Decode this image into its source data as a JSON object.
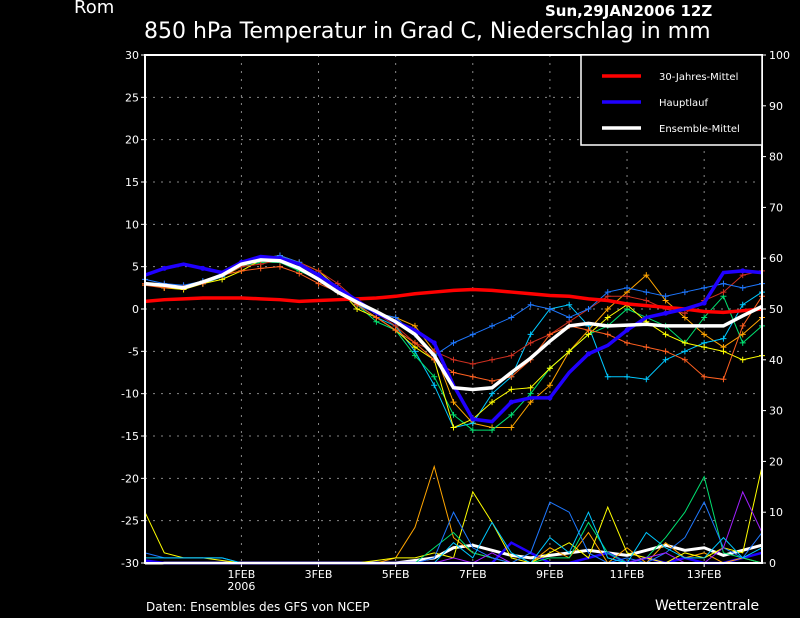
{
  "header": {
    "location": "Rom",
    "run": "Sun,29JAN2006 12Z",
    "title": "850 hPa Temperatur in Grad C, Niederschlag in mm"
  },
  "footer": {
    "source": "Daten: Ensembles des GFS von NCEP",
    "brand": "Wetterzentrale"
  },
  "chart_data": {
    "type": "line",
    "title": "850 hPa Temperatur in Grad C, Niederschlag in mm",
    "x_unit": "days since 29JAN2006 12Z, 12h steps",
    "x": [
      0,
      0.5,
      1,
      1.5,
      2,
      2.5,
      3,
      3.5,
      4,
      4.5,
      5,
      5.5,
      6,
      6.5,
      7,
      7.5,
      8,
      8.5,
      9,
      9.5,
      10,
      10.5,
      11,
      11.5,
      12,
      12.5,
      13,
      13.5,
      14,
      14.5,
      15,
      15.5,
      16
    ],
    "x_ticks": [
      {
        "day": 2.5,
        "label": "1FEB",
        "sub": "2006"
      },
      {
        "day": 4.5,
        "label": "3FEB"
      },
      {
        "day": 6.5,
        "label": "5FEB"
      },
      {
        "day": 8.5,
        "label": "7FEB"
      },
      {
        "day": 10.5,
        "label": "9FEB"
      },
      {
        "day": 12.5,
        "label": "11FEB"
      },
      {
        "day": 14.5,
        "label": "13FEB"
      }
    ],
    "ylim_left": [
      -30,
      30
    ],
    "yticks_left": [
      "-30",
      "-25",
      "-20",
      "-15",
      "-10",
      "-5",
      "0",
      "5",
      "10",
      "15",
      "20",
      "25",
      "30"
    ],
    "ylim_right": [
      0,
      100
    ],
    "yticks_right": [
      "0",
      "10",
      "20",
      "30",
      "40",
      "50",
      "60",
      "70",
      "80",
      "90",
      "100"
    ],
    "grid": true,
    "legend_position": "top-right",
    "legend": [
      {
        "name": "30-Jahres-Mittel",
        "color": "#ff0000"
      },
      {
        "name": "Hauptlauf",
        "color": "#2000ff"
      },
      {
        "name": "Ensemble-Mittel",
        "color": "#ffffff"
      }
    ],
    "series": [
      {
        "name": "30-Jahres-Mittel",
        "color": "#ff0000",
        "width": 3.5,
        "values": [
          0.9,
          1.1,
          1.2,
          1.3,
          1.3,
          1.3,
          1.2,
          1.1,
          0.9,
          1.0,
          1.1,
          1.2,
          1.3,
          1.5,
          1.8,
          2.0,
          2.2,
          2.3,
          2.2,
          2.0,
          1.8,
          1.6,
          1.5,
          1.2,
          1.0,
          0.6,
          0.4,
          0.2,
          0,
          -0.3,
          -0.4,
          -0.2,
          0
        ]
      },
      {
        "name": "Hauptlauf",
        "color": "#2000ff",
        "width": 3.5,
        "values": [
          4,
          4.8,
          5.3,
          4.8,
          4.3,
          5.5,
          6.2,
          6,
          5.3,
          4,
          2.5,
          1,
          -0.5,
          -1.5,
          -2.5,
          -4,
          -9,
          -13,
          -13.3,
          -11,
          -10.5,
          -10.5,
          -7.5,
          -5.3,
          -4.3,
          -2.5,
          -1,
          -0.5,
          0,
          0.7,
          4.3,
          4.5,
          4.3
        ]
      },
      {
        "name": "Ensemble-Mittel",
        "color": "#ffffff",
        "width": 3.5,
        "values": [
          3,
          2.8,
          2.5,
          3.2,
          4,
          5.3,
          5.8,
          5.7,
          4.8,
          3.5,
          2,
          0.8,
          -0.3,
          -1.5,
          -3,
          -5.5,
          -9.3,
          -9.5,
          -9.3,
          -7.5,
          -5.8,
          -3.8,
          -2,
          -1.7,
          -2,
          -1.9,
          -1.8,
          -2,
          -2,
          -2,
          -2,
          -0.8,
          0.3
        ]
      }
    ],
    "members": [
      {
        "color": "#ffa500",
        "values": [
          3,
          2.8,
          2.5,
          3,
          3.8,
          5,
          6,
          6.3,
          5.3,
          4,
          2.5,
          1,
          -0.5,
          -1,
          -2,
          -5,
          -11,
          -13.5,
          -14,
          -14,
          -11,
          -9,
          -5,
          -2.5,
          0,
          2,
          4,
          1,
          -1,
          -3,
          -4.5,
          -3,
          -1
        ]
      },
      {
        "color": "#00c8ff",
        "values": [
          3,
          2.7,
          2.5,
          3,
          3.8,
          5.2,
          5.8,
          5.7,
          5,
          3.5,
          2,
          0.5,
          -1,
          -2,
          -5,
          -9,
          -14,
          -13.5,
          -10,
          -8,
          -3,
          0,
          0.5,
          -2,
          -8,
          -8,
          -8.3,
          -6,
          -5,
          -4,
          -3.5,
          0.5,
          2
        ]
      },
      {
        "color": "#00e070",
        "values": [
          3,
          2.5,
          2.5,
          3.2,
          4,
          5,
          5.5,
          5.5,
          4.5,
          3.5,
          2,
          0.5,
          -1.5,
          -2.5,
          -5.5,
          -8,
          -12.5,
          -14.3,
          -14.3,
          -12.5,
          -10,
          -7,
          -5,
          -3,
          -2,
          0,
          -1,
          -2,
          -4,
          -1,
          1.5,
          -4,
          -2
        ]
      },
      {
        "color": "#ffff00",
        "values": [
          3,
          2.5,
          2.3,
          3,
          3.5,
          4.5,
          5.8,
          6.3,
          5.5,
          4.5,
          2.5,
          0,
          -1,
          -2.5,
          -4.5,
          -6,
          -14,
          -13,
          -11,
          -9.5,
          -9.3,
          -7,
          -5,
          -3,
          -1,
          0.5,
          -1.5,
          -3,
          -4,
          -4.5,
          -5,
          -6,
          -5.5
        ]
      },
      {
        "color": "#d03020",
        "values": [
          3,
          2.8,
          2.7,
          3.2,
          4,
          5,
          5.3,
          5.8,
          5.5,
          4.5,
          3,
          1,
          -0.5,
          -2,
          -4,
          -5,
          -6,
          -6.5,
          -6,
          -5.5,
          -4,
          -3,
          -1.5,
          0,
          1.5,
          1.5,
          1,
          0,
          -0.5,
          1,
          2,
          4,
          4.5
        ]
      },
      {
        "color": "#1e78ff",
        "values": [
          3.5,
          3,
          2.8,
          3.3,
          4.2,
          5.5,
          6,
          6.3,
          5.5,
          4,
          2.5,
          0.5,
          -0.5,
          -1,
          -3,
          -5.5,
          -4,
          -3,
          -2,
          -1,
          0.5,
          0,
          -1,
          0,
          2,
          2.5,
          2,
          1.5,
          2,
          2.5,
          3,
          2.5,
          3
        ]
      },
      {
        "color": "#ff6020",
        "values": [
          2.8,
          2.5,
          2.5,
          3,
          4,
          4.5,
          4.8,
          5,
          4.2,
          3,
          2,
          0.5,
          -1,
          -2.5,
          -4,
          -6,
          -7.5,
          -8,
          -8.5,
          -8,
          -6,
          -3,
          -2,
          -2.5,
          -3,
          -4,
          -4.5,
          -5,
          -6,
          -8,
          -8.3,
          -2,
          1.5
        ]
      }
    ],
    "precip_mm": [
      {
        "name": "Ensemble-Mittel",
        "color": "#ffffff",
        "width": 3,
        "values": [
          0,
          0,
          0,
          0,
          0,
          0,
          0,
          0,
          0,
          0,
          0,
          0,
          0,
          0,
          0.5,
          1,
          3,
          3.5,
          2.5,
          1.5,
          1,
          1.5,
          2,
          2.5,
          2,
          1.5,
          2.5,
          3.5,
          2.5,
          3,
          1.5,
          2.5,
          3.5
        ]
      },
      {
        "name": "Hauptlauf",
        "color": "#2000ff",
        "width": 2.5,
        "values": [
          0.5,
          0,
          0,
          0,
          0,
          0,
          0,
          0,
          0,
          0,
          0,
          0,
          0,
          0,
          0,
          0,
          0,
          0,
          0,
          4,
          2,
          0,
          0,
          1,
          2,
          0,
          1,
          0,
          1,
          0,
          0,
          1,
          2
        ]
      },
      {
        "color": "#ffa500",
        "values": [
          0,
          0,
          0,
          0,
          0,
          0,
          0,
          0,
          0,
          0,
          0,
          0,
          0,
          1,
          7,
          19,
          5,
          2,
          1,
          0,
          0,
          3,
          1,
          6,
          0,
          3,
          0,
          4,
          1,
          2,
          0,
          1,
          0
        ]
      },
      {
        "color": "#ffff00",
        "values": [
          10,
          2,
          1,
          1,
          0.5,
          0,
          0,
          0,
          0,
          0,
          0,
          0,
          0.5,
          1,
          1,
          2,
          1,
          14,
          8,
          1,
          0,
          2,
          4,
          1,
          11,
          2,
          1,
          0,
          2,
          1,
          3,
          2,
          19
        ]
      },
      {
        "color": "#00e070",
        "values": [
          0,
          0,
          0,
          0,
          0,
          0,
          0,
          0,
          0,
          0,
          0,
          0,
          0,
          0,
          0,
          3,
          6,
          2,
          1,
          0,
          0,
          1,
          1,
          8,
          2,
          0,
          1,
          5,
          10,
          17,
          2,
          1,
          0
        ]
      },
      {
        "color": "#1e78ff",
        "values": [
          2,
          1,
          1,
          1,
          1,
          0,
          0,
          0,
          0,
          0,
          0,
          0,
          0,
          0,
          0,
          1,
          10,
          3,
          1,
          0,
          2,
          12,
          10,
          2,
          0,
          1,
          0,
          2,
          5,
          12,
          3,
          1,
          6
        ]
      },
      {
        "color": "#a020ff",
        "values": [
          0,
          0,
          0,
          0,
          0,
          0,
          0,
          0,
          0,
          0,
          0,
          0,
          0,
          0,
          0,
          0,
          1,
          0,
          2,
          0,
          0,
          0,
          0,
          0,
          0,
          0,
          1,
          2,
          0,
          0,
          3,
          14,
          6
        ]
      },
      {
        "color": "#00c8ff",
        "values": [
          1,
          1,
          1,
          1,
          1,
          0,
          0,
          0,
          0,
          0,
          0,
          0,
          0,
          0,
          0,
          0,
          4,
          1,
          8,
          2,
          0,
          5,
          2,
          10,
          1,
          0,
          6,
          3,
          1,
          1,
          5,
          1,
          3
        ]
      }
    ]
  }
}
